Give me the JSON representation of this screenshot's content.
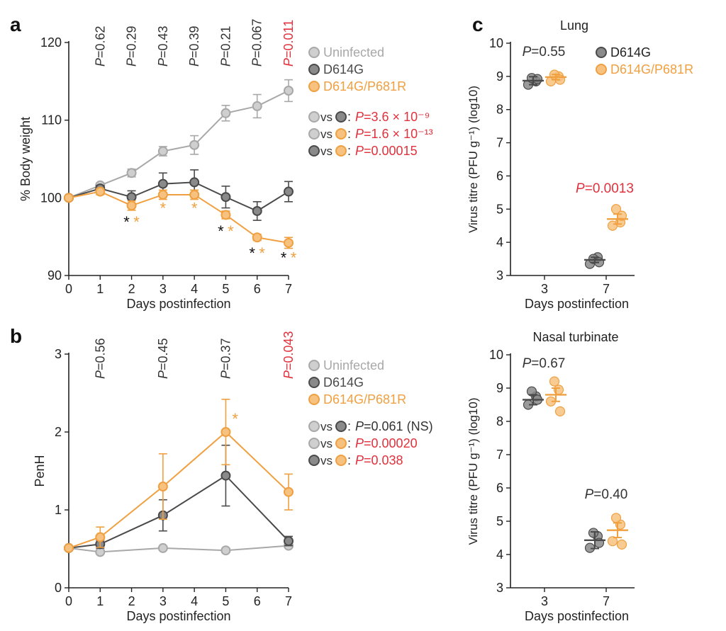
{
  "colors": {
    "uninfected": "#a8a8a8",
    "d614g": "#4a4a4a",
    "p681r": "#f0a040",
    "red": "#e0313c",
    "axis": "#222222"
  },
  "chart_data": [
    {
      "id": "a",
      "type": "line",
      "panel_label": "a",
      "xlabel": "Days postinfection",
      "ylabel": "% Body weight",
      "xlim": [
        0,
        7
      ],
      "ylim": [
        90,
        120
      ],
      "x_ticks": [
        "0",
        "1",
        "2",
        "3",
        "4",
        "5",
        "6",
        "7"
      ],
      "y_ticks": [
        "90",
        "100",
        "110",
        "120"
      ],
      "x": [
        0,
        1,
        2,
        3,
        4,
        5,
        6,
        7
      ],
      "series": [
        {
          "name": "Uninfected",
          "key": "uninfected",
          "values": [
            100,
            101.6,
            103.2,
            106.0,
            106.8,
            110.9,
            111.8,
            113.8
          ],
          "errors": [
            0,
            0.3,
            0.5,
            0.6,
            1.2,
            1.0,
            1.5,
            1.4
          ]
        },
        {
          "name": "D614G",
          "key": "d614g",
          "values": [
            100,
            101.2,
            100.1,
            101.8,
            102.0,
            100.1,
            98.3,
            100.8
          ],
          "errors": [
            0,
            0.4,
            0.8,
            1.4,
            1.6,
            1.4,
            1.2,
            1.3
          ]
        },
        {
          "name": "D614G/P681R",
          "key": "p681r",
          "values": [
            100,
            100.8,
            99.0,
            100.4,
            100.4,
            97.8,
            94.9,
            94.2
          ],
          "errors": [
            0,
            0.4,
            0.6,
            0.6,
            0.6,
            0.5,
            0.4,
            0.7
          ]
        }
      ],
      "top_pvalues": [
        {
          "day": 1,
          "text": "P=0.62",
          "red": false
        },
        {
          "day": 2,
          "text": "P=0.29",
          "red": false
        },
        {
          "day": 3,
          "text": "P=0.43",
          "red": false
        },
        {
          "day": 4,
          "text": "P=0.39",
          "red": false
        },
        {
          "day": 5,
          "text": "P=0.21",
          "red": false
        },
        {
          "day": 6,
          "text": "P=0.067",
          "red": false
        },
        {
          "day": 7,
          "text": "P=0.011",
          "red": true
        }
      ],
      "stars": [
        {
          "day": 2,
          "y": 96.2,
          "black": true,
          "orange": true
        },
        {
          "day": 3,
          "y": 98.0,
          "black": false,
          "orange": true
        },
        {
          "day": 4,
          "y": 98.0,
          "black": false,
          "orange": true
        },
        {
          "day": 5,
          "y": 95.0,
          "black": true,
          "orange": true
        },
        {
          "day": 6,
          "y": 92.2,
          "black": true,
          "orange": true
        },
        {
          "day": 7,
          "y": 91.6,
          "black": true,
          "orange": true
        }
      ],
      "comparisons": [
        {
          "a": "uninfected",
          "b": "d614g",
          "text": "P=3.6 × 10⁻⁹",
          "red": true
        },
        {
          "a": "uninfected",
          "b": "p681r",
          "text": "P=1.6 × 10⁻¹³",
          "red": true
        },
        {
          "a": "d614g",
          "b": "p681r",
          "text": "P=0.00015",
          "red": true
        }
      ]
    },
    {
      "id": "b",
      "type": "line",
      "panel_label": "b",
      "xlabel": "Days postinfection",
      "ylabel": "PenH",
      "xlim": [
        0,
        7
      ],
      "ylim": [
        0,
        3
      ],
      "x_ticks": [
        "0",
        "1",
        "2",
        "3",
        "4",
        "5",
        "6",
        "7"
      ],
      "y_ticks": [
        "0",
        "1",
        "2",
        "3"
      ],
      "x": [
        0,
        1,
        3,
        5,
        7
      ],
      "series": [
        {
          "name": "Uninfected",
          "key": "uninfected",
          "values": [
            0.51,
            0.46,
            0.51,
            0.48,
            0.54
          ],
          "errors": [
            0,
            0.02,
            0.02,
            0.02,
            0.02
          ]
        },
        {
          "name": "D614G",
          "key": "d614g",
          "values": [
            0.51,
            0.56,
            0.93,
            1.44,
            0.6
          ],
          "errors": [
            0,
            0.05,
            0.2,
            0.39,
            0.06
          ]
        },
        {
          "name": "D614G/P681R",
          "key": "p681r",
          "values": [
            0.51,
            0.65,
            1.3,
            2.0,
            1.23
          ],
          "errors": [
            0,
            0.13,
            0.42,
            0.42,
            0.23
          ]
        }
      ],
      "top_pvalues": [
        {
          "day": 1,
          "text": "P=0.56",
          "red": false
        },
        {
          "day": 3,
          "text": "P=0.45",
          "red": false
        },
        {
          "day": 5,
          "text": "P=0.37",
          "red": false
        },
        {
          "day": 7,
          "text": "P=0.043",
          "red": true
        }
      ],
      "stars": [
        {
          "day": 5.3,
          "y": 2.1,
          "black": false,
          "orange": true
        }
      ],
      "comparisons": [
        {
          "a": "uninfected",
          "b": "d614g",
          "text": "P=0.061 (NS)",
          "red": false
        },
        {
          "a": "uninfected",
          "b": "p681r",
          "text": "P=0.00020",
          "red": true
        },
        {
          "a": "d614g",
          "b": "p681r",
          "text": "P=0.038",
          "red": true
        }
      ]
    },
    {
      "id": "c-lung",
      "type": "scatter",
      "panel_label": "c",
      "title": "Lung",
      "xlabel": "Days postinfection",
      "ylabel": "Virus titre (PFU g⁻¹) (log10)",
      "ylim": [
        3,
        10
      ],
      "y_ticks": [
        "3",
        "4",
        "5",
        "6",
        "7",
        "8",
        "9",
        "10"
      ],
      "categories": [
        "3",
        "7"
      ],
      "series": [
        {
          "name": "D614G",
          "key": "d614g",
          "points": [
            [
              8.75,
              8.85,
              8.95,
              8.92
            ],
            [
              3.35,
              3.55,
              3.5,
              3.4
            ]
          ],
          "mean": [
            8.87,
            3.47
          ],
          "sem": [
            0.12,
            0.08
          ]
        },
        {
          "name": "D614G/P681R",
          "key": "p681r",
          "points": [
            [
              8.85,
              9.0,
              9.05,
              8.9
            ],
            [
              4.5,
              4.6,
              5.0,
              4.8
            ]
          ],
          "mean": [
            8.98,
            4.7
          ],
          "sem": [
            0.08,
            0.15
          ]
        }
      ],
      "group_pvalues": [
        {
          "category": "3",
          "text": "P=0.55",
          "red": false
        },
        {
          "category": "7",
          "text": "P=0.0013",
          "red": true
        }
      ]
    },
    {
      "id": "c-nasal",
      "type": "scatter",
      "panel_label": "",
      "title": "Nasal turbinate",
      "xlabel": "Days postinfection",
      "ylabel": "Virus titre (PFU g⁻¹) (log10)",
      "ylim": [
        3,
        10
      ],
      "y_ticks": [
        "3",
        "4",
        "5",
        "6",
        "7",
        "8",
        "9",
        "10"
      ],
      "categories": [
        "3",
        "7"
      ],
      "series": [
        {
          "name": "D614G",
          "key": "d614g",
          "points": [
            [
              8.5,
              8.75,
              8.9,
              8.65
            ],
            [
              4.2,
              4.55,
              4.65,
              4.35
            ]
          ],
          "mean": [
            8.65,
            4.43
          ],
          "sem": [
            0.15,
            0.25
          ]
        },
        {
          "name": "D614G/P681R",
          "key": "p681r",
          "points": [
            [
              8.6,
              8.95,
              9.2,
              8.3
            ],
            [
              4.4,
              4.9,
              5.1,
              4.3
            ]
          ],
          "mean": [
            8.8,
            4.73
          ],
          "sem": [
            0.2,
            0.22
          ]
        }
      ],
      "group_pvalues": [
        {
          "category": "3",
          "text": "P=0.67",
          "red": false
        },
        {
          "category": "7",
          "text": "P=0.40",
          "red": false
        }
      ]
    }
  ],
  "legend_c": [
    {
      "name": "D614G",
      "key": "d614g"
    },
    {
      "name": "D614G/P681R",
      "key": "p681r"
    }
  ],
  "comparison_vs": "vs",
  "star_glyph": "*"
}
